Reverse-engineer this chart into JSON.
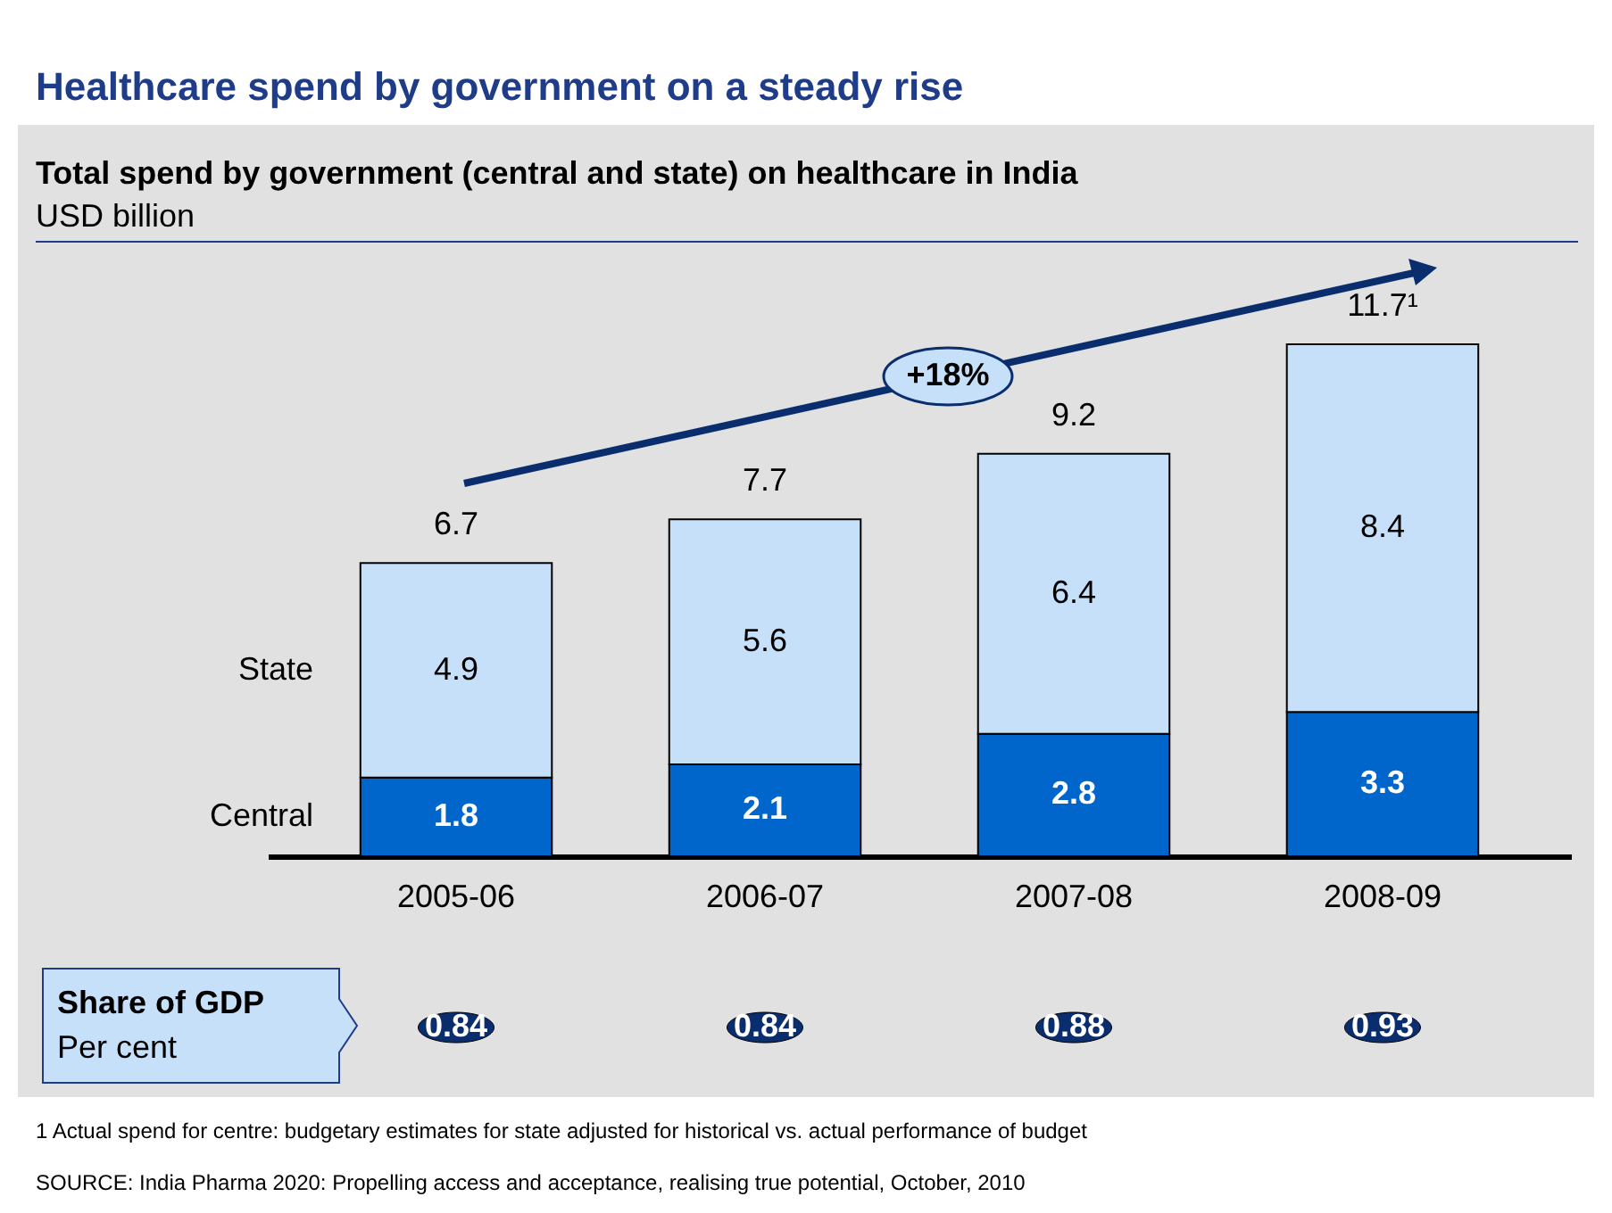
{
  "chart_data": {
    "type": "bar",
    "stacked": true,
    "title": "Healthcare spend by government on a steady rise",
    "subtitle": "Total spend by government (central and state) on healthcare in India",
    "ylabel": "USD billion",
    "categories": [
      "2005-06",
      "2006-07",
      "2007-08",
      "2008-09"
    ],
    "series": [
      {
        "name": "Central",
        "color": "#0066cc",
        "values": [
          1.8,
          2.1,
          2.8,
          3.3
        ]
      },
      {
        "name": "State",
        "color": "#c6e0fa",
        "values": [
          4.9,
          5.6,
          6.4,
          8.4
        ]
      }
    ],
    "data_labels": true,
    "totals": [
      "6.7",
      "7.7",
      "9.2",
      "11.7¹"
    ],
    "legend": "left",
    "annotations": [
      "+18%",
      "Share of GDP",
      "Per cent",
      "0.84",
      "0.84",
      "0.88",
      "0.93",
      "1 Actual spend for centre: budgetary estimates for state adjusted for historical vs. actual performance of budget",
      "SOURCE: India Pharma 2020: Propelling access and acceptance, realising true potential, October, 2010"
    ]
  }
}
